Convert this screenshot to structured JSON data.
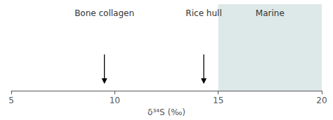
{
  "chart_data": {
    "type": "scatter",
    "xlabel": "δ³⁴S (‰)",
    "xlim": [
      5,
      20
    ],
    "xticks": [
      5,
      10,
      15,
      20
    ],
    "tick_labels": "x",
    "grid": false,
    "marker": "arrow",
    "annotations": [
      {
        "text": "Bone collagen",
        "x": 9.5
      },
      {
        "text": "Rice hull",
        "x": 14.3
      }
    ],
    "spans": [
      {
        "text": "Marine",
        "x": [
          15,
          20
        ],
        "color": "#dde8e8"
      }
    ]
  }
}
